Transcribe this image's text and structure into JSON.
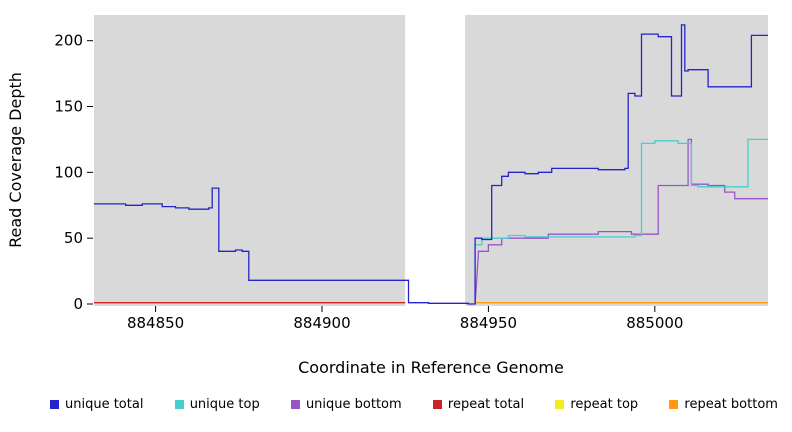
{
  "chart_data": {
    "type": "line",
    "title": "",
    "xlabel": "Coordinate in Reference Genome",
    "ylabel": "Read Coverage Depth",
    "xlim": [
      884831.5,
      885034
    ],
    "ylim": [
      0,
      218
    ],
    "x_ticks": [
      884850,
      884900,
      884950,
      885000
    ],
    "y_ticks": [
      0,
      50,
      100,
      150,
      200
    ],
    "grid": false,
    "band_color": "#D9D9D9",
    "background_bands": [
      [
        884831.5,
        884925
      ],
      [
        884943,
        885034
      ]
    ],
    "series": [
      {
        "name": "repeat total",
        "color": "#CC2222",
        "points": [
          [
            884831.5,
            1
          ],
          [
            884925,
            1
          ]
        ]
      },
      {
        "name": "repeat top",
        "color": "#EEEE22",
        "points": [
          [
            884946,
            1
          ],
          [
            885034,
            1
          ]
        ]
      },
      {
        "name": "repeat bottom",
        "color": "#FF9912",
        "points": [
          [
            884946,
            1
          ],
          [
            885034,
            1
          ]
        ]
      },
      {
        "name": "unique bottom",
        "color": "#9955C8",
        "points": [
          [
            884946,
            0
          ],
          [
            884947,
            38
          ],
          [
            884947,
            40
          ],
          [
            884950,
            40
          ],
          [
            884950,
            45
          ],
          [
            884954,
            45
          ],
          [
            884954,
            50
          ],
          [
            884968,
            50
          ],
          [
            884968,
            53
          ],
          [
            884983,
            53
          ],
          [
            884983,
            55
          ],
          [
            884993,
            55
          ],
          [
            884993,
            53
          ],
          [
            885001,
            53
          ],
          [
            885001,
            90
          ],
          [
            885010,
            90
          ],
          [
            885010,
            125
          ],
          [
            885011,
            125
          ],
          [
            885011,
            91
          ],
          [
            885016,
            91
          ],
          [
            885016,
            90
          ],
          [
            885021,
            90
          ],
          [
            885021,
            85
          ],
          [
            885024,
            85
          ],
          [
            885024,
            80
          ],
          [
            885034,
            80
          ]
        ]
      },
      {
        "name": "unique top",
        "color": "#45CFCF",
        "points": [
          [
            884946,
            45
          ],
          [
            884948,
            45
          ],
          [
            884948,
            50
          ],
          [
            884956,
            50
          ],
          [
            884956,
            52
          ],
          [
            884961,
            52
          ],
          [
            884961,
            51
          ],
          [
            884994,
            51
          ],
          [
            884994,
            52
          ],
          [
            884996,
            52
          ],
          [
            884996,
            122
          ],
          [
            885000,
            122
          ],
          [
            885000,
            124
          ],
          [
            885007,
            124
          ],
          [
            885007,
            122
          ],
          [
            885011,
            122
          ],
          [
            885011,
            90
          ],
          [
            885013,
            90
          ],
          [
            885013,
            89
          ],
          [
            885028,
            89
          ],
          [
            885028,
            125
          ],
          [
            885034,
            125
          ]
        ]
      },
      {
        "name": "unique total",
        "color": "#2424CC",
        "points": [
          [
            884831.5,
            76
          ],
          [
            884841,
            76
          ],
          [
            884841,
            75
          ],
          [
            884846,
            75
          ],
          [
            884846,
            76
          ],
          [
            884852,
            76
          ],
          [
            884852,
            74
          ],
          [
            884856,
            74
          ],
          [
            884856,
            73
          ],
          [
            884860,
            73
          ],
          [
            884860,
            72
          ],
          [
            884866,
            72
          ],
          [
            884866,
            73
          ],
          [
            884867,
            73
          ],
          [
            884867,
            88
          ],
          [
            884869,
            88
          ],
          [
            884869,
            40
          ],
          [
            884874,
            40
          ],
          [
            884874,
            41
          ],
          [
            884876,
            41
          ],
          [
            884876,
            40
          ],
          [
            884878,
            40
          ],
          [
            884878,
            18
          ],
          [
            884926,
            18
          ],
          [
            884926,
            1
          ],
          [
            884932,
            1
          ],
          [
            884932,
            0.5
          ],
          [
            884944,
            0.5
          ],
          [
            884944,
            0
          ],
          [
            884946,
            0
          ],
          [
            884946,
            50
          ],
          [
            884948,
            50
          ],
          [
            884948,
            49
          ],
          [
            884951,
            49
          ],
          [
            884951,
            90
          ],
          [
            884954,
            90
          ],
          [
            884954,
            97
          ],
          [
            884956,
            97
          ],
          [
            884956,
            100
          ],
          [
            884961,
            100
          ],
          [
            884961,
            99
          ],
          [
            884965,
            99
          ],
          [
            884965,
            100
          ],
          [
            884969,
            100
          ],
          [
            884969,
            103
          ],
          [
            884983,
            103
          ],
          [
            884983,
            102
          ],
          [
            884991,
            102
          ],
          [
            884991,
            103
          ],
          [
            884992,
            103
          ],
          [
            884992,
            160
          ],
          [
            884994,
            160
          ],
          [
            884994,
            158
          ],
          [
            884996,
            158
          ],
          [
            884996,
            205
          ],
          [
            885001,
            205
          ],
          [
            885001,
            203
          ],
          [
            885005,
            203
          ],
          [
            885005,
            158
          ],
          [
            885008,
            158
          ],
          [
            885008,
            212
          ],
          [
            885009,
            212
          ],
          [
            885009,
            177
          ],
          [
            885010,
            177
          ],
          [
            885010,
            178
          ],
          [
            885016,
            178
          ],
          [
            885016,
            165
          ],
          [
            885029,
            165
          ],
          [
            885029,
            204
          ],
          [
            885034,
            204
          ]
        ]
      }
    ]
  },
  "legend": {
    "items": [
      {
        "label": "unique total",
        "color": "#2424CC"
      },
      {
        "label": "unique top",
        "color": "#45CFCF"
      },
      {
        "label": "unique bottom",
        "color": "#9955C8"
      },
      {
        "label": "repeat total",
        "color": "#CC2222"
      },
      {
        "label": "repeat top",
        "color": "#EEEE22"
      },
      {
        "label": "repeat bottom",
        "color": "#FF9912"
      }
    ]
  }
}
